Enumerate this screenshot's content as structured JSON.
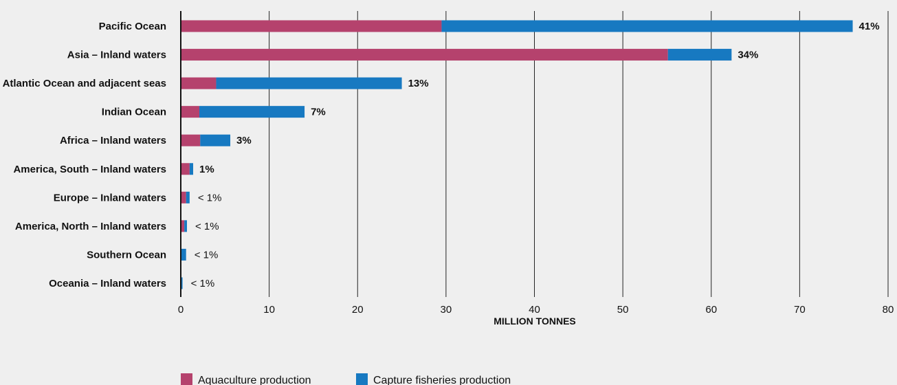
{
  "chart_data": {
    "type": "bar",
    "orientation": "horizontal",
    "stacked": true,
    "categories": [
      "Pacific Ocean",
      "Asia – Inland waters",
      "Atlantic Ocean and adjacent seas",
      "Indian Ocean",
      "Africa – Inland waters",
      "America, South – Inland waters",
      "Europe – Inland waters",
      "America, North – Inland waters",
      "Southern Ocean",
      "Oceania – Inland waters"
    ],
    "series": [
      {
        "name": "Aquaculture production",
        "color": "#b5426d",
        "values": [
          29.5,
          55.1,
          4.0,
          2.1,
          2.2,
          1.0,
          0.6,
          0.4,
          0.0,
          0.05
        ]
      },
      {
        "name": "Capture fisheries production",
        "color": "#1779c1",
        "values": [
          46.5,
          7.2,
          21.0,
          11.9,
          3.4,
          0.4,
          0.4,
          0.3,
          0.6,
          0.15
        ]
      }
    ],
    "data_labels": [
      "41%",
      "34%",
      "13%",
      "7%",
      "3%",
      "1%",
      "< 1%",
      "< 1%",
      "< 1%",
      "< 1%"
    ],
    "xlabel": "MILLION TONNES",
    "ylabel": "",
    "xlim": [
      0,
      80
    ],
    "xticks": [
      "0",
      "10",
      "20",
      "30",
      "40",
      "50",
      "60",
      "70",
      "80"
    ],
    "grid": "vertical",
    "legend_position": "bottom"
  }
}
